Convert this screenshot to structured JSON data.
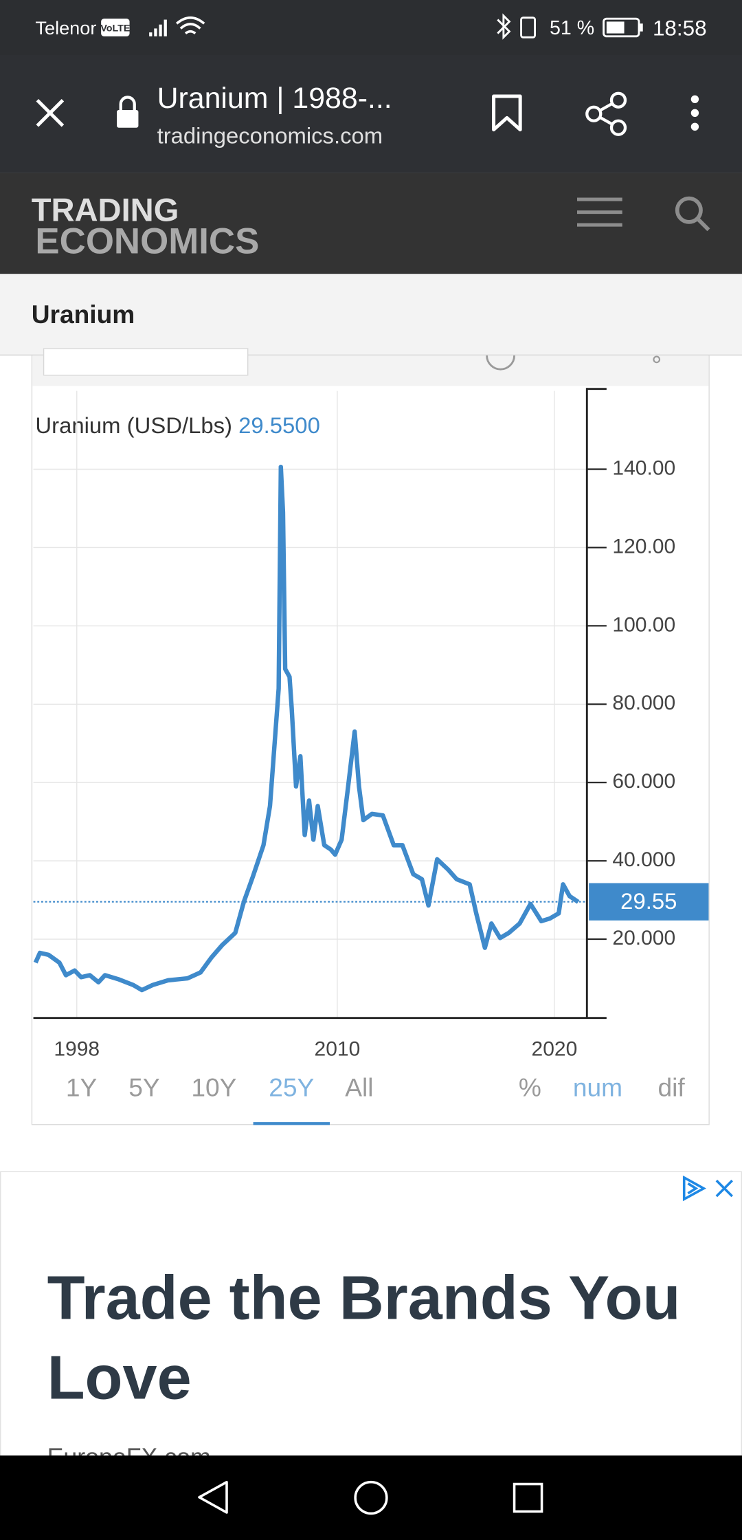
{
  "status_bar": {
    "carrier": "Telenor",
    "network": "VoLTE",
    "battery": "51 %",
    "time": "18:58"
  },
  "browser": {
    "title": "Uranium | 1988-...",
    "url": "tradingeconomics.com"
  },
  "site": {
    "logo_line1": "TRADING",
    "logo_line2": "ECONOMICS"
  },
  "page": {
    "title": "Uranium"
  },
  "chart_data": {
    "type": "line",
    "title": "Uranium (USD/Lbs)",
    "color": "#3f8acb",
    "x": [
      1996.1,
      1996.3,
      1996.7,
      1997.2,
      1997.5,
      1997.9,
      1998.2,
      1998.6,
      1999.0,
      1999.3,
      1999.9,
      2000.6,
      2001.0,
      2001.5,
      2002.2,
      2003.1,
      2003.7,
      2004.2,
      2004.7,
      2005.3,
      2005.7,
      2006.1,
      2006.6,
      2006.9,
      2007.1,
      2007.3,
      2007.4,
      2007.5,
      2007.6,
      2007.8,
      2007.9,
      2008.1,
      2008.3,
      2008.5,
      2008.7,
      2008.9,
      2009.1,
      2009.4,
      2009.7,
      2009.9,
      2010.2,
      2010.5,
      2010.8,
      2011.0,
      2011.2,
      2011.6,
      2012.1,
      2012.6,
      2013.0,
      2013.5,
      2013.9,
      2014.2,
      2014.6,
      2015.1,
      2015.5,
      2016.1,
      2016.4,
      2016.8,
      2017.1,
      2017.5,
      2017.9,
      2018.4,
      2018.9,
      2019.4,
      2019.8,
      2020.2,
      2020.4,
      2020.7,
      2021.1
    ],
    "values": [
      14,
      16.5,
      16,
      14,
      10.8,
      12,
      10.3,
      10.8,
      9,
      10.8,
      9.8,
      8.3,
      7,
      8.3,
      9.5,
      10,
      11.5,
      15.3,
      18.5,
      21.6,
      29.6,
      35.8,
      44,
      54,
      69,
      84,
      140.6,
      129,
      89,
      87,
      79,
      59,
      66.7,
      46.6,
      55.4,
      45.4,
      54,
      44,
      42.9,
      41.6,
      45.4,
      59,
      73,
      59,
      50.4,
      52,
      51.6,
      44,
      44,
      36.6,
      35.3,
      28.6,
      40.4,
      37.8,
      35.3,
      34,
      26.6,
      17.8,
      24,
      20.3,
      21.6,
      24,
      29,
      24.6,
      25.3,
      26.6,
      34,
      31,
      29.5
    ],
    "current": {
      "value": 29.55,
      "label": "29.5500",
      "tag": "29.55"
    },
    "xlim": [
      1996,
      2021.5
    ],
    "xticks": [
      1998,
      2010,
      2020
    ],
    "ylim": [
      0,
      160
    ],
    "yticks": [
      {
        "value": 20,
        "label": "20.000"
      },
      {
        "value": 40,
        "label": "40.000"
      },
      {
        "value": 60,
        "label": "60.000"
      },
      {
        "value": 80,
        "label": "80.000"
      },
      {
        "value": 100,
        "label": "100.00"
      },
      {
        "value": 120,
        "label": "120.00"
      },
      {
        "value": 140,
        "label": "140.00"
      }
    ],
    "grid": true
  },
  "range_buttons": [
    {
      "label": "1Y"
    },
    {
      "label": "5Y"
    },
    {
      "label": "10Y"
    },
    {
      "label": "25Y",
      "active": true
    },
    {
      "label": "All"
    }
  ],
  "mode_buttons": [
    {
      "label": "%"
    },
    {
      "label": "num",
      "active": true
    },
    {
      "label": "dif"
    }
  ],
  "ad": {
    "headline_lines": [
      "Trade the Brands You",
      "Love"
    ],
    "advertiser": "EuropeFX.com"
  }
}
